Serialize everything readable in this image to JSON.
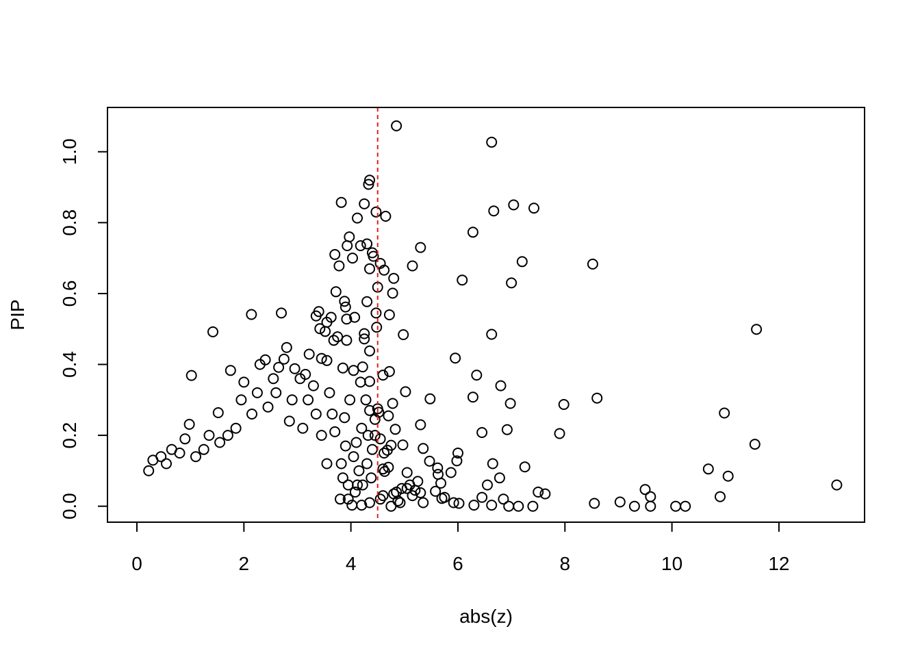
{
  "chart_data": {
    "type": "scatter",
    "title": "",
    "xlabel": "abs(z)",
    "ylabel": "PIP",
    "xlim": [
      -0.55,
      13.6
    ],
    "ylim": [
      -0.045,
      1.125
    ],
    "x_ticks": [
      0,
      2,
      4,
      6,
      8,
      10,
      12
    ],
    "x_tick_labels": [
      "0",
      "2",
      "4",
      "6",
      "8",
      "10",
      "12"
    ],
    "y_ticks": [
      0.0,
      0.2,
      0.4,
      0.6,
      0.8,
      1.0
    ],
    "y_tick_labels": [
      "0.0",
      "0.2",
      "0.4",
      "0.6",
      "0.8",
      "1.0"
    ],
    "grid": false,
    "legend": "none",
    "marker": "open-circle",
    "marker_color": "#000000",
    "reference_line": {
      "orientation": "vertical",
      "x": 4.5,
      "style": "dashed",
      "color": "#e41a1c"
    },
    "series": [
      {
        "points": [
          [
            4.85,
            1.073
          ],
          [
            6.63,
            1.027
          ],
          [
            4.35,
            0.92
          ],
          [
            4.33,
            0.908
          ],
          [
            3.82,
            0.857
          ],
          [
            4.25,
            0.853
          ],
          [
            7.04,
            0.85
          ],
          [
            7.42,
            0.841
          ],
          [
            6.67,
            0.833
          ],
          [
            4.47,
            0.83
          ],
          [
            4.65,
            0.818
          ],
          [
            4.12,
            0.813
          ],
          [
            6.28,
            0.773
          ],
          [
            3.97,
            0.76
          ],
          [
            3.93,
            0.735
          ],
          [
            4.3,
            0.74
          ],
          [
            4.18,
            0.735
          ],
          [
            5.3,
            0.73
          ],
          [
            4.4,
            0.715
          ],
          [
            3.7,
            0.71
          ],
          [
            4.03,
            0.7
          ],
          [
            4.42,
            0.705
          ],
          [
            7.2,
            0.69
          ],
          [
            8.52,
            0.683
          ],
          [
            4.55,
            0.685
          ],
          [
            5.15,
            0.678
          ],
          [
            3.78,
            0.678
          ],
          [
            4.35,
            0.67
          ],
          [
            4.62,
            0.666
          ],
          [
            4.8,
            0.643
          ],
          [
            6.08,
            0.638
          ],
          [
            7.0,
            0.63
          ],
          [
            4.5,
            0.618
          ],
          [
            3.72,
            0.605
          ],
          [
            4.78,
            0.601
          ],
          [
            3.88,
            0.578
          ],
          [
            4.3,
            0.577
          ],
          [
            3.9,
            0.562
          ],
          [
            4.47,
            0.545
          ],
          [
            3.4,
            0.549
          ],
          [
            2.7,
            0.545
          ],
          [
            2.14,
            0.541
          ],
          [
            4.72,
            0.54
          ],
          [
            3.35,
            0.537
          ],
          [
            3.63,
            0.533
          ],
          [
            3.92,
            0.528
          ],
          [
            4.07,
            0.533
          ],
          [
            3.55,
            0.519
          ],
          [
            3.42,
            0.501
          ],
          [
            4.48,
            0.505
          ],
          [
            3.52,
            0.493
          ],
          [
            1.42,
            0.492
          ],
          [
            3.75,
            0.478
          ],
          [
            4.25,
            0.487
          ],
          [
            4.98,
            0.484
          ],
          [
            6.63,
            0.485
          ],
          [
            3.68,
            0.468
          ],
          [
            4.25,
            0.472
          ],
          [
            3.92,
            0.468
          ],
          [
            11.58,
            0.499
          ],
          [
            2.8,
            0.448
          ],
          [
            4.35,
            0.438
          ],
          [
            3.22,
            0.429
          ],
          [
            2.75,
            0.415
          ],
          [
            3.45,
            0.417
          ],
          [
            5.95,
            0.418
          ],
          [
            3.55,
            0.411
          ],
          [
            2.4,
            0.413
          ],
          [
            1.02,
            0.369
          ],
          [
            6.35,
            0.37
          ],
          [
            4.72,
            0.38
          ],
          [
            4.6,
            0.37
          ],
          [
            3.85,
            0.39
          ],
          [
            4.05,
            0.383
          ],
          [
            4.22,
            0.393
          ],
          [
            2.3,
            0.4
          ],
          [
            2.65,
            0.392
          ],
          [
            2.95,
            0.388
          ],
          [
            3.15,
            0.372
          ],
          [
            1.75,
            0.383
          ],
          [
            2.0,
            0.35
          ],
          [
            6.8,
            0.34
          ],
          [
            4.35,
            0.352
          ],
          [
            4.18,
            0.35
          ],
          [
            5.02,
            0.323
          ],
          [
            5.48,
            0.303
          ],
          [
            6.28,
            0.308
          ],
          [
            8.6,
            0.305
          ],
          [
            6.98,
            0.29
          ],
          [
            7.98,
            0.287
          ],
          [
            4.78,
            0.29
          ],
          [
            4.5,
            0.275
          ],
          [
            4.35,
            0.27
          ],
          [
            4.52,
            0.265
          ],
          [
            4.7,
            0.255
          ],
          [
            4.45,
            0.245
          ],
          [
            1.52,
            0.264
          ],
          [
            10.98,
            0.263
          ],
          [
            5.3,
            0.23
          ],
          [
            4.83,
            0.217
          ],
          [
            6.92,
            0.216
          ],
          [
            6.45,
            0.208
          ],
          [
            7.9,
            0.205
          ],
          [
            4.45,
            0.2
          ],
          [
            4.55,
            0.19
          ],
          [
            0.98,
            0.231
          ],
          [
            11.55,
            0.175
          ],
          [
            4.97,
            0.173
          ],
          [
            5.35,
            0.163
          ],
          [
            4.75,
            0.172
          ],
          [
            4.4,
            0.16
          ],
          [
            4.62,
            0.15
          ],
          [
            4.68,
            0.158
          ],
          [
            6.0,
            0.15
          ],
          [
            5.98,
            0.128
          ],
          [
            6.65,
            0.12
          ],
          [
            5.47,
            0.127
          ],
          [
            7.25,
            0.111
          ],
          [
            5.62,
            0.108
          ],
          [
            5.63,
            0.09
          ],
          [
            5.87,
            0.095
          ],
          [
            4.6,
            0.105
          ],
          [
            4.7,
            0.11
          ],
          [
            4.63,
            0.098
          ],
          [
            5.05,
            0.095
          ],
          [
            10.68,
            0.105
          ],
          [
            11.05,
            0.085
          ],
          [
            6.78,
            0.08
          ],
          [
            6.55,
            0.06
          ],
          [
            5.68,
            0.065
          ],
          [
            5.25,
            0.07
          ],
          [
            5.1,
            0.06
          ],
          [
            5.05,
            0.05
          ],
          [
            5.2,
            0.045
          ],
          [
            4.95,
            0.05
          ],
          [
            4.85,
            0.04
          ],
          [
            4.8,
            0.035
          ],
          [
            5.58,
            0.042
          ],
          [
            5.3,
            0.038
          ],
          [
            5.15,
            0.03
          ],
          [
            7.5,
            0.04
          ],
          [
            7.63,
            0.035
          ],
          [
            9.5,
            0.047
          ],
          [
            9.6,
            0.027
          ],
          [
            10.9,
            0.027
          ],
          [
            13.08,
            0.06
          ],
          [
            6.45,
            0.025
          ],
          [
            6.85,
            0.02
          ],
          [
            5.75,
            0.025
          ],
          [
            5.7,
            0.022
          ],
          [
            5.35,
            0.01
          ],
          [
            5.92,
            0.01
          ],
          [
            6.02,
            0.008
          ],
          [
            4.92,
            0.01
          ],
          [
            4.88,
            0.015
          ],
          [
            4.55,
            0.02
          ],
          [
            4.6,
            0.03
          ],
          [
            4.35,
            0.01
          ],
          [
            8.55,
            0.008
          ],
          [
            9.03,
            0.012
          ],
          [
            9.3,
            0.0
          ],
          [
            9.6,
            0.0
          ],
          [
            10.07,
            0.0
          ],
          [
            10.25,
            0.0
          ],
          [
            6.95,
            0.0
          ],
          [
            7.13,
            0.0
          ],
          [
            7.4,
            0.0
          ],
          [
            6.3,
            0.003
          ],
          [
            6.63,
            0.003
          ],
          [
            4.2,
            0.003
          ],
          [
            4.02,
            0.003
          ],
          [
            4.75,
            0.0
          ],
          [
            3.85,
            0.08
          ],
          [
            3.95,
            0.06
          ],
          [
            3.82,
            0.12
          ],
          [
            3.9,
            0.17
          ],
          [
            3.7,
            0.21
          ],
          [
            3.88,
            0.25
          ],
          [
            3.98,
            0.3
          ],
          [
            3.6,
            0.32
          ],
          [
            3.65,
            0.26
          ],
          [
            4.1,
            0.18
          ],
          [
            4.05,
            0.14
          ],
          [
            4.15,
            0.1
          ],
          [
            4.12,
            0.06
          ],
          [
            4.08,
            0.04
          ],
          [
            3.8,
            0.02
          ],
          [
            3.95,
            0.02
          ],
          [
            4.22,
            0.06
          ],
          [
            4.3,
            0.12
          ],
          [
            4.2,
            0.22
          ],
          [
            4.28,
            0.3
          ],
          [
            4.32,
            0.2
          ],
          [
            4.38,
            0.08
          ],
          [
            3.55,
            0.12
          ],
          [
            3.45,
            0.2
          ],
          [
            3.35,
            0.26
          ],
          [
            3.3,
            0.34
          ],
          [
            3.2,
            0.3
          ],
          [
            3.1,
            0.22
          ],
          [
            3.05,
            0.36
          ],
          [
            2.9,
            0.3
          ],
          [
            2.85,
            0.24
          ],
          [
            2.6,
            0.32
          ],
          [
            2.55,
            0.36
          ],
          [
            2.45,
            0.28
          ],
          [
            2.25,
            0.32
          ],
          [
            2.15,
            0.26
          ],
          [
            1.95,
            0.3
          ],
          [
            1.85,
            0.22
          ],
          [
            1.7,
            0.2
          ],
          [
            1.55,
            0.18
          ],
          [
            1.35,
            0.2
          ],
          [
            1.25,
            0.16
          ],
          [
            1.1,
            0.14
          ],
          [
            0.9,
            0.19
          ],
          [
            0.8,
            0.15
          ],
          [
            0.65,
            0.16
          ],
          [
            0.55,
            0.12
          ],
          [
            0.45,
            0.14
          ],
          [
            0.3,
            0.13
          ],
          [
            0.22,
            0.1
          ]
        ]
      }
    ]
  }
}
